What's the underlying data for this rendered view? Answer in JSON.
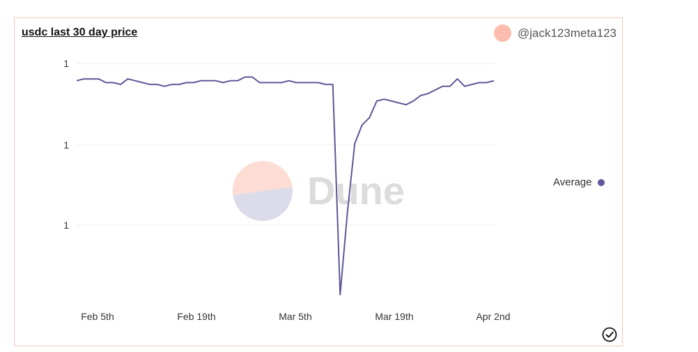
{
  "card": {
    "title": "usdc last 30 day price",
    "author": "@jack123meta123",
    "avatar_color": "#fcbcae",
    "watermark_text": "Dune",
    "status_icon": "check-circle-icon"
  },
  "chart_data": {
    "type": "line",
    "title": "usdc last 30 day price",
    "xlabel": "",
    "ylabel": "",
    "x_start": "2023-02-02",
    "x_ticks": [
      "Feb 5th",
      "Feb 19th",
      "Mar 5th",
      "Mar 19th",
      "Apr 2nd"
    ],
    "y_ticks": [
      "1",
      "1",
      "1"
    ],
    "ylim": [
      0.988,
      1.001
    ],
    "grid": true,
    "legend_position": "right",
    "series": [
      {
        "name": "Average",
        "color": "#5b5798",
        "values": [
          1.0001,
          1.0002,
          1.0002,
          1.0002,
          1.0,
          1.0,
          0.9999,
          1.0002,
          1.0001,
          1.0,
          0.9999,
          0.9999,
          0.9998,
          0.9999,
          0.9999,
          1.0,
          1.0,
          1.0001,
          1.0001,
          1.0001,
          1.0,
          1.0001,
          1.0001,
          1.0003,
          1.0003,
          1.0,
          1.0,
          1.0,
          1.0,
          1.0001,
          1.0,
          1.0,
          1.0,
          1.0,
          0.9999,
          0.9999,
          0.9885,
          0.993,
          0.9967,
          0.9977,
          0.9981,
          0.999,
          0.9991,
          0.999,
          0.9989,
          0.9988,
          0.999,
          0.9993,
          0.9994,
          0.9996,
          0.9998,
          0.9998,
          1.0002,
          0.9998,
          0.9999,
          1.0,
          1.0,
          1.0001
        ]
      }
    ]
  }
}
